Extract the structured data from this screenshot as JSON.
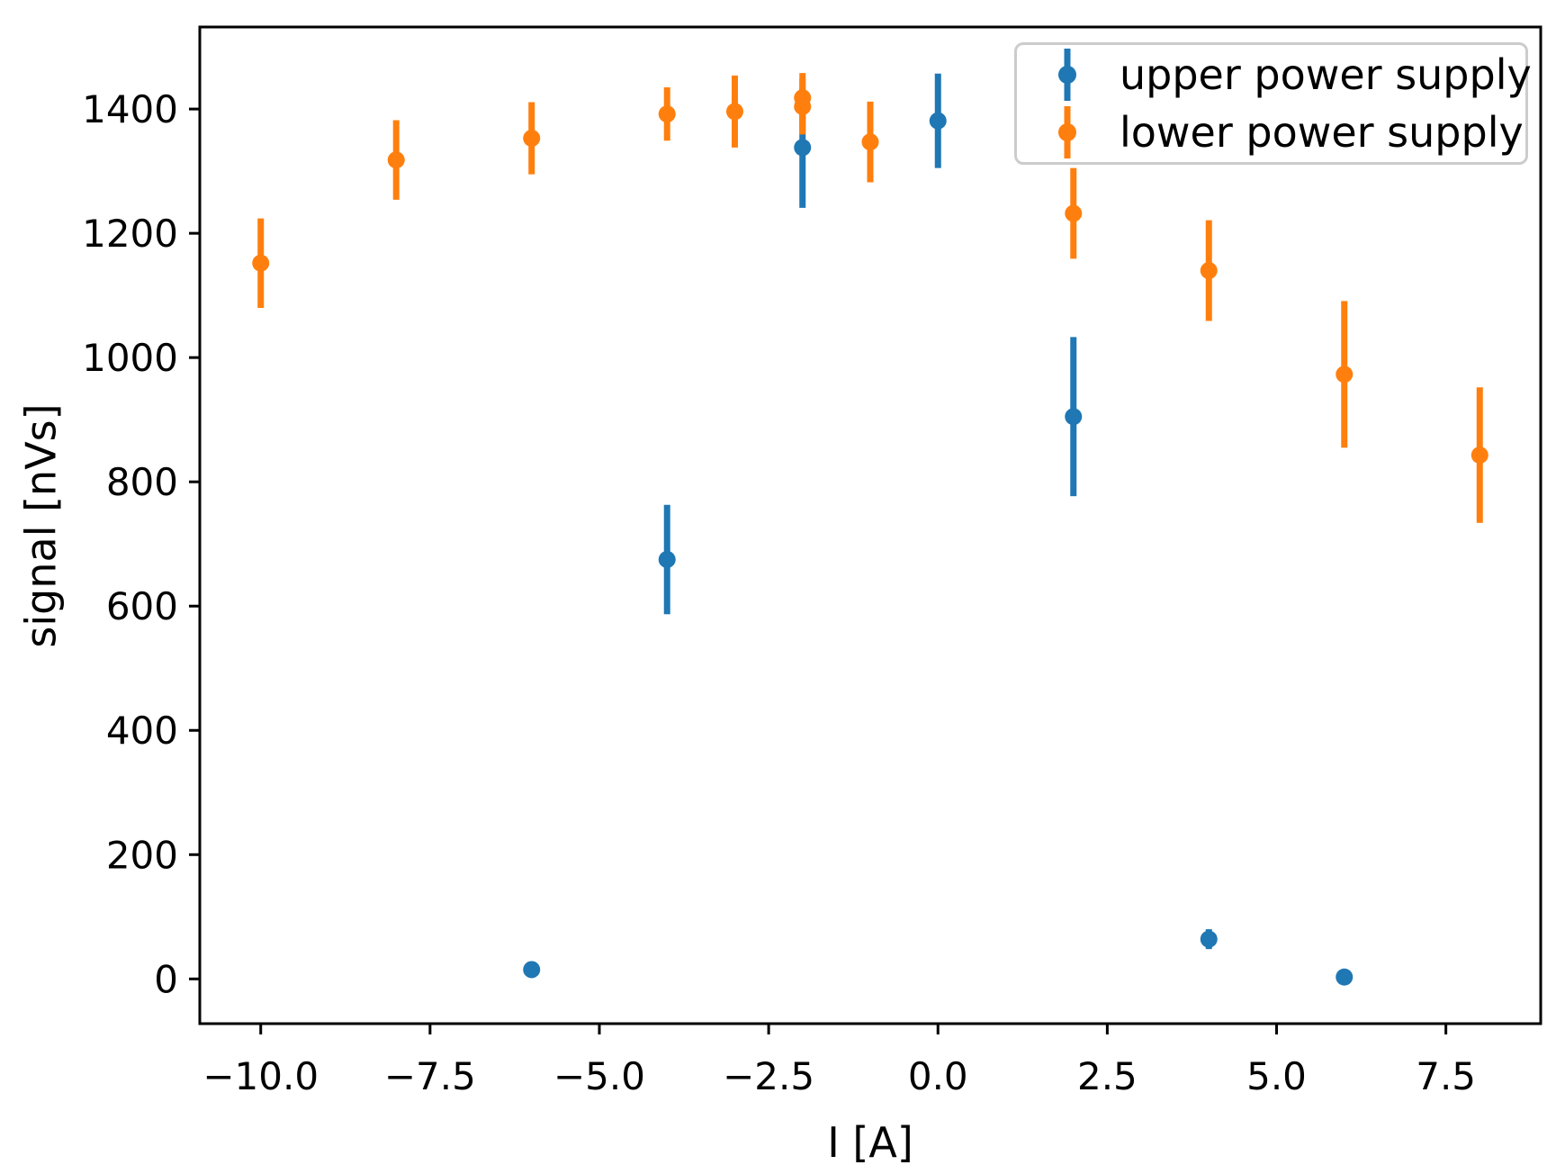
{
  "chart_data": {
    "type": "scatter",
    "style": "errorbar",
    "title": "",
    "xlabel": "I [A]",
    "ylabel": "signal [nVs]",
    "xlim": [
      -10.9,
      8.9
    ],
    "ylim": [
      -72,
      1532
    ],
    "xticks": [
      -10.0,
      -7.5,
      -5.0,
      -2.5,
      0.0,
      2.5,
      5.0,
      7.5
    ],
    "xtick_labels": [
      "−10.0",
      "−7.5",
      "−5.0",
      "−2.5",
      "0.0",
      "2.5",
      "5.0",
      "7.5"
    ],
    "yticks": [
      0,
      200,
      400,
      600,
      800,
      1000,
      1200,
      1400
    ],
    "ytick_labels": [
      "0",
      "200",
      "400",
      "600",
      "800",
      "1000",
      "1200",
      "1400"
    ],
    "grid": false,
    "legend_position": "upper right",
    "series": [
      {
        "name": "upper power supply",
        "color": "#1f77b4",
        "marker": "o",
        "points": [
          {
            "x": -6,
            "y": 15,
            "yerr": 10
          },
          {
            "x": -4,
            "y": 675,
            "yerr": 88
          },
          {
            "x": -2,
            "y": 1338,
            "yerr": 97
          },
          {
            "x": 0,
            "y": 1381,
            "yerr": 76
          },
          {
            "x": 2,
            "y": 905,
            "yerr": 128
          },
          {
            "x": 4,
            "y": 64,
            "yerr": 16
          },
          {
            "x": 6,
            "y": 3,
            "yerr": 8
          }
        ]
      },
      {
        "name": "lower power supply",
        "color": "#ff7f0e",
        "marker": "o",
        "points": [
          {
            "x": -10,
            "y": 1152,
            "yerr": 72
          },
          {
            "x": -8,
            "y": 1318,
            "yerr": 64
          },
          {
            "x": -6,
            "y": 1353,
            "yerr": 58
          },
          {
            "x": -4,
            "y": 1392,
            "yerr": 43
          },
          {
            "x": -3,
            "y": 1396,
            "yerr": 58
          },
          {
            "x": -2,
            "y": 1418,
            "yerr": 40
          },
          {
            "x": -2,
            "y": 1404,
            "yerr": 45
          },
          {
            "x": -1,
            "y": 1347,
            "yerr": 65
          },
          {
            "x": 2,
            "y": 1232,
            "yerr": 73
          },
          {
            "x": 4,
            "y": 1140,
            "yerr": 81
          },
          {
            "x": 6,
            "y": 973,
            "yerr": 118
          },
          {
            "x": 8,
            "y": 843,
            "yerr": 109
          }
        ]
      }
    ],
    "axis_color": "#000000",
    "background_color": "#ffffff"
  }
}
